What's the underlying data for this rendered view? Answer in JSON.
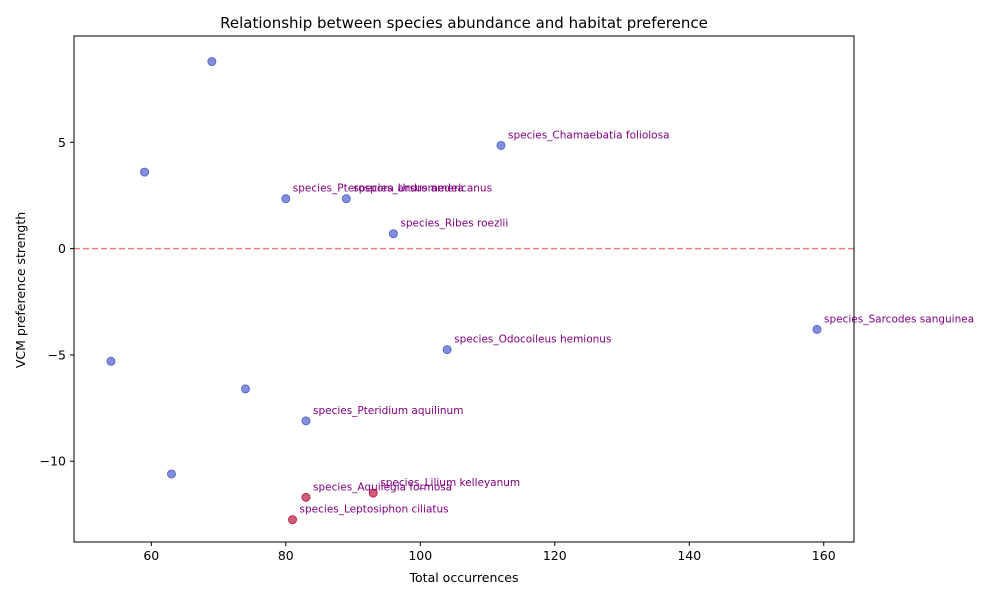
{
  "chart_data": {
    "type": "scatter",
    "title": "Relationship between species abundance and habitat preference",
    "xlabel": "Total occurrences",
    "ylabel": "VCM preference strength",
    "xlim": [
      48.5,
      164.5
    ],
    "ylim": [
      -13.8,
      10.0
    ],
    "xticks": [
      60,
      80,
      100,
      120,
      140,
      160
    ],
    "yticks": [
      -10,
      -5,
      0,
      5
    ],
    "grid": false,
    "reference_line": {
      "y": 0,
      "style": "dashed",
      "color": "#f08080"
    },
    "colors": {
      "default": "#5a6acf",
      "highlight": "#c0284e",
      "label": "#800080"
    },
    "points": [
      {
        "x": 69,
        "y": 8.8,
        "label": "",
        "group": "default"
      },
      {
        "x": 59,
        "y": 3.6,
        "label": "",
        "group": "default"
      },
      {
        "x": 112,
        "y": 4.85,
        "label": "species_Chamaebatia foliolosa",
        "group": "default"
      },
      {
        "x": 80,
        "y": 2.35,
        "label": "species_Pterospora andromedea",
        "group": "default"
      },
      {
        "x": 89,
        "y": 2.35,
        "label": "species_Ursus americanus",
        "group": "default"
      },
      {
        "x": 96,
        "y": 0.7,
        "label": "species_Ribes roezlii",
        "group": "default"
      },
      {
        "x": 159,
        "y": -3.8,
        "label": "species_Sarcodes sanguinea",
        "group": "default"
      },
      {
        "x": 104,
        "y": -4.75,
        "label": "species_Odocoileus hemionus",
        "group": "default"
      },
      {
        "x": 54,
        "y": -5.3,
        "label": "",
        "group": "default"
      },
      {
        "x": 74,
        "y": -6.6,
        "label": "",
        "group": "default"
      },
      {
        "x": 83,
        "y": -8.1,
        "label": "species_Pteridium aquilinum",
        "group": "default"
      },
      {
        "x": 63,
        "y": -10.6,
        "label": "",
        "group": "default"
      },
      {
        "x": 93,
        "y": -11.5,
        "label": "species_Lilium kelleyanum",
        "group": "highlight"
      },
      {
        "x": 83,
        "y": -11.7,
        "label": "species_Aquilegia formosa",
        "group": "highlight"
      },
      {
        "x": 81,
        "y": -12.75,
        "label": "species_Leptosiphon ciliatus",
        "group": "highlight"
      }
    ]
  }
}
